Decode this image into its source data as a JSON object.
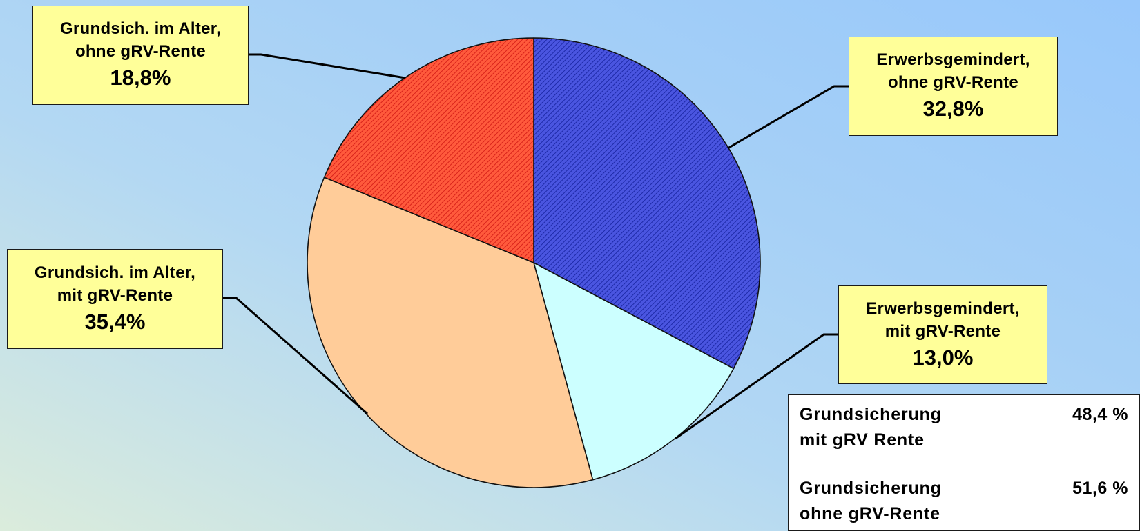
{
  "chart_data": {
    "type": "pie",
    "start_angle_deg": 0,
    "direction": "clockwise",
    "slices": [
      {
        "label_line1": "Erwerbsgemindert,",
        "label_line2": "ohne gRV-Rente",
        "value": 32.8,
        "value_label": "32,8%",
        "color": "#3b45d8",
        "pattern": "hatch"
      },
      {
        "label_line1": "Erwerbsgemindert,",
        "label_line2": "mit gRV-Rente",
        "value": 13.0,
        "value_label": "13,0%",
        "color": "#ccffff",
        "pattern": "solid"
      },
      {
        "label_line1": "Grundsich. im Alter,",
        "label_line2": "mit gRV-Rente",
        "value": 35.4,
        "value_label": "35,4%",
        "color": "#ffcc99",
        "pattern": "solid"
      },
      {
        "label_line1": "Grundsich. im Alter,",
        "label_line2": "ohne gRV-Rente",
        "value": 18.8,
        "value_label": "18,8%",
        "color": "#ff4530",
        "pattern": "hatch"
      }
    ]
  },
  "summary": {
    "rows": [
      {
        "label_line1": "Grundsicherung",
        "label_line2": "mit gRV Rente",
        "value": "48,4 %"
      },
      {
        "label_line1": "Grundsicherung",
        "label_line2": "ohne gRV-Rente",
        "value": "51,6 %"
      }
    ]
  }
}
